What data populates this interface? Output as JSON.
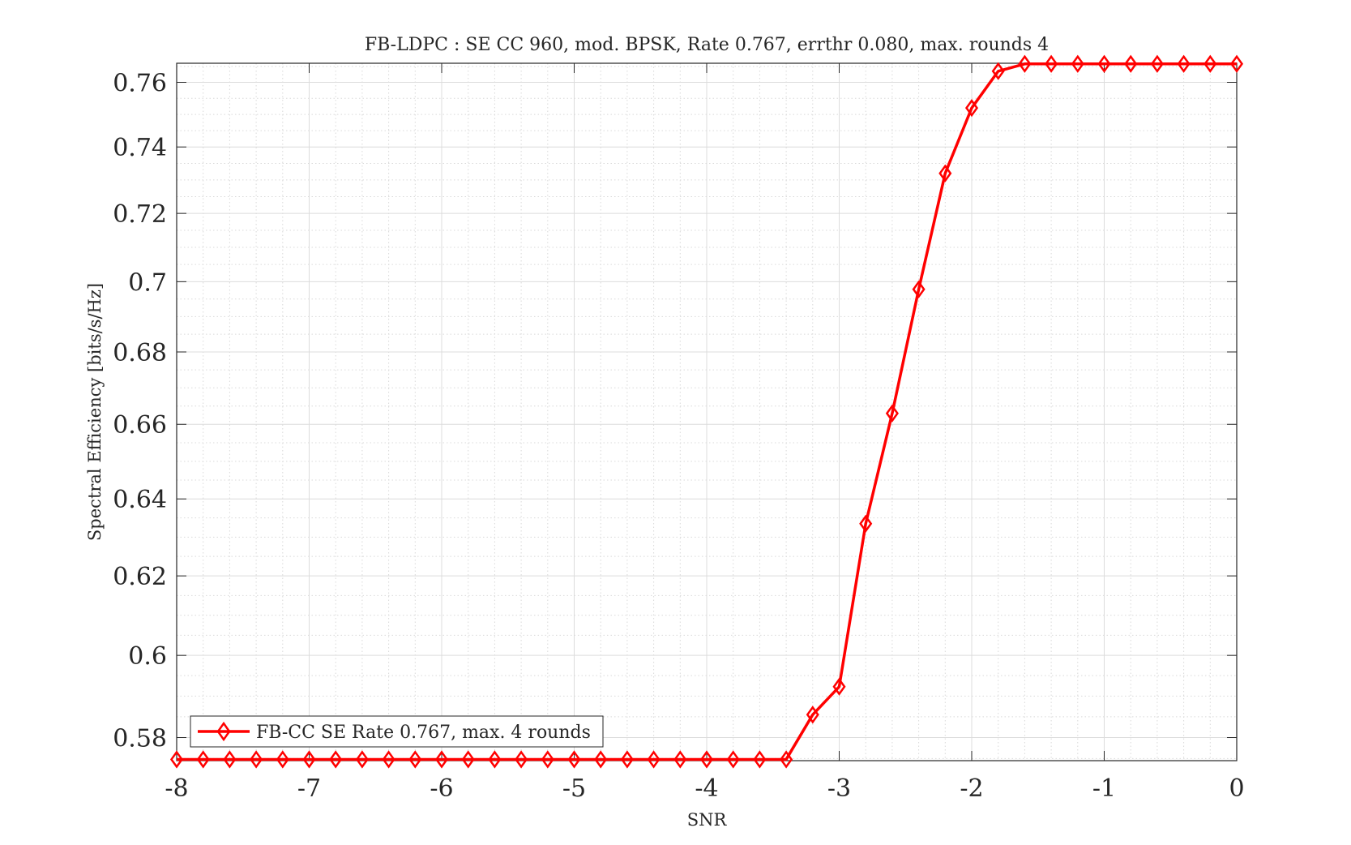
{
  "chart_data": {
    "type": "line",
    "title": "FB-LDPC : SE CC 960, mod. BPSK, Rate 0.767, errthr 0.080, max. rounds 4",
    "xlabel": "SNR",
    "ylabel": "Spectral Efficiency [bits/s/Hz]",
    "xlim": [
      -8,
      0
    ],
    "ylim": [
      0.5745,
      0.766
    ],
    "y_scale": "log",
    "xticks": [
      "-8",
      "-7",
      "-6",
      "-5",
      "-4",
      "-3",
      "-2",
      "-1",
      "0"
    ],
    "yticks": [
      "0.58",
      "0.6",
      "0.62",
      "0.64",
      "0.66",
      "0.68",
      "0.7",
      "0.72",
      "0.74",
      "0.76"
    ],
    "grid": true,
    "minor_grid": true,
    "legend_position": "bottom-left",
    "series": [
      {
        "name": "FB-CC SE Rate 0.767, max. 4 rounds",
        "color": "#ff0000",
        "marker": "diamond",
        "x": [
          -8,
          -7.8,
          -7.6,
          -7.4,
          -7.2,
          -7,
          -6.8,
          -6.6,
          -6.4,
          -6.2,
          -6,
          -5.8,
          -5.6,
          -5.4,
          -5.2,
          -5,
          -4.8,
          -4.6,
          -4.4,
          -4.2,
          -4,
          -3.8,
          -3.6,
          -3.4,
          -3.2,
          -3,
          -2.8,
          -2.6,
          -2.4,
          -2.2,
          -2,
          -1.8,
          -1.6,
          -1.4,
          -1.2,
          -1,
          -0.8,
          -0.6,
          -0.4,
          -0.2,
          0
        ],
        "y": [
          0.5748,
          0.5748,
          0.5748,
          0.5748,
          0.5748,
          0.5748,
          0.5748,
          0.5748,
          0.5748,
          0.5748,
          0.5748,
          0.5748,
          0.5748,
          0.5748,
          0.5748,
          0.5748,
          0.5748,
          0.5748,
          0.5748,
          0.5748,
          0.5748,
          0.5748,
          0.5748,
          0.5748,
          0.5855,
          0.5923,
          0.6335,
          0.663,
          0.6978,
          0.732,
          0.752,
          0.7635,
          0.7658,
          0.7658,
          0.7658,
          0.7658,
          0.7658,
          0.7658,
          0.7658,
          0.7658,
          0.7658
        ]
      }
    ]
  }
}
